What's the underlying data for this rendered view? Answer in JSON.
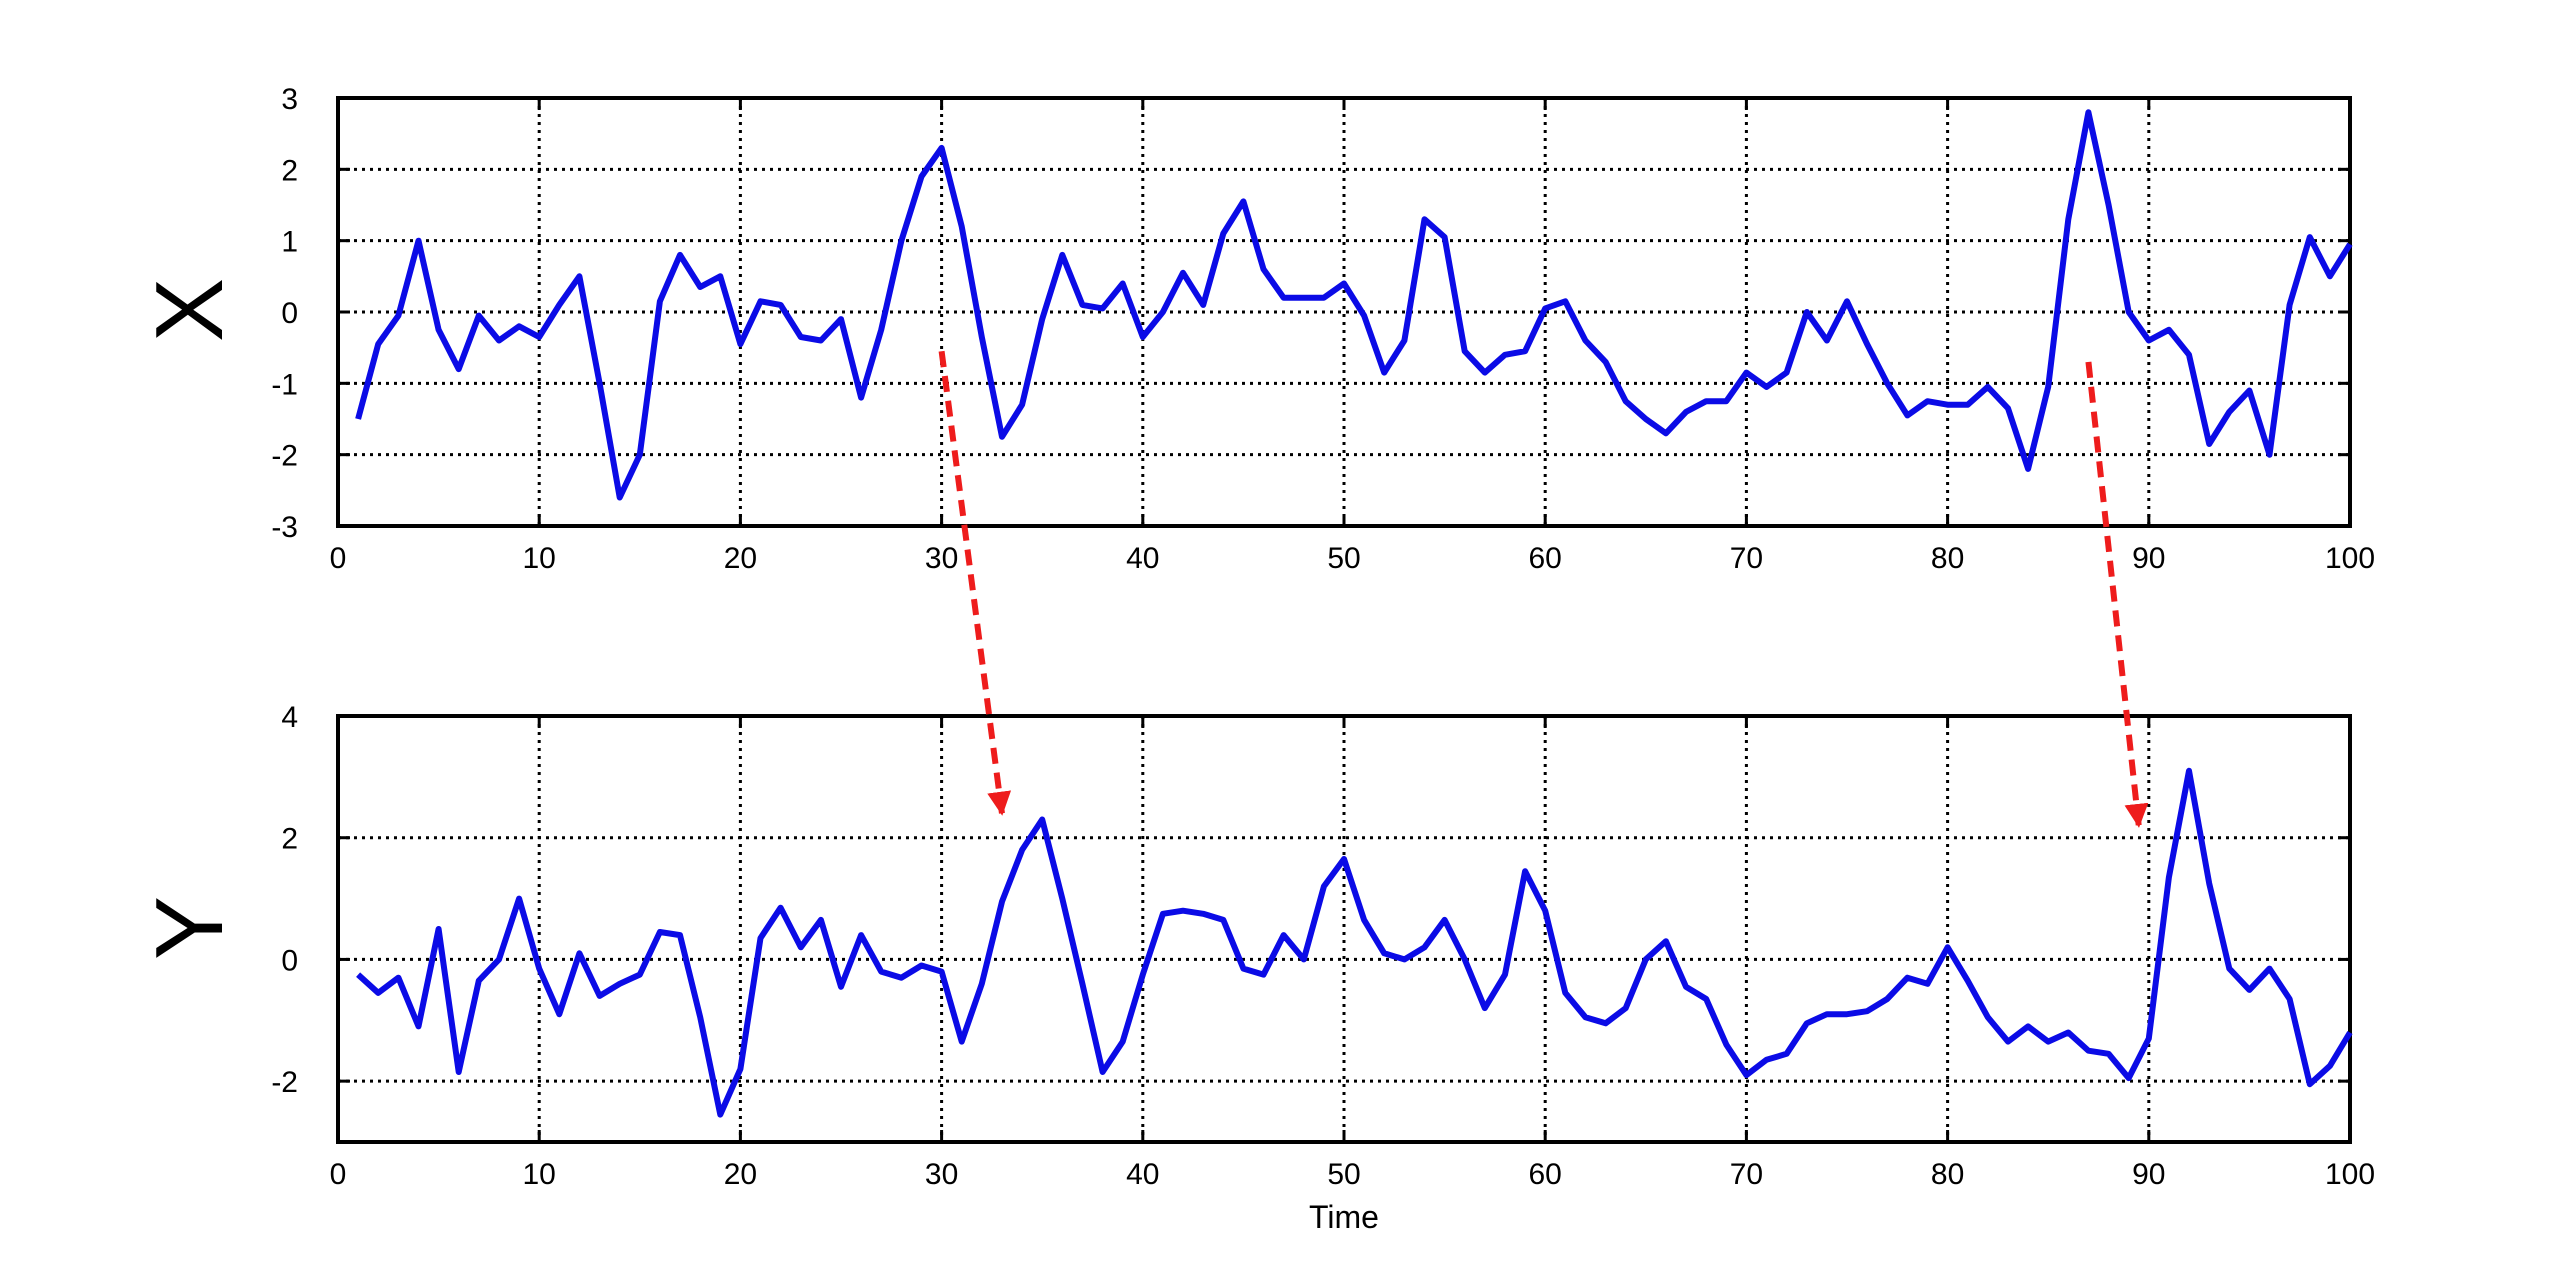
{
  "chart_data": [
    {
      "type": "line",
      "ylabel": "X",
      "xlabel": "",
      "xlim": [
        0,
        100
      ],
      "ylim": [
        -3,
        3
      ],
      "xticks": [
        "0",
        "10",
        "20",
        "30",
        "40",
        "50",
        "60",
        "70",
        "80",
        "90",
        "100"
      ],
      "yticks": [
        "-3",
        "-2",
        "-1",
        "0",
        "1",
        "2",
        "3"
      ],
      "grid": true,
      "series_color": "#0b0be6",
      "series": [
        {
          "x": [
            1,
            2,
            3,
            4,
            5,
            6,
            7,
            8,
            9,
            10,
            11,
            12,
            13,
            14,
            15,
            16,
            17,
            18,
            19,
            20,
            21,
            22,
            23,
            24,
            25,
            26,
            27,
            28,
            29,
            30,
            31,
            32,
            33,
            34,
            35,
            36,
            37,
            38,
            39,
            40,
            41,
            42,
            43,
            44,
            45,
            46,
            47,
            48,
            49,
            50,
            51,
            52,
            53,
            54,
            55,
            56,
            57,
            58,
            59,
            60,
            61,
            62,
            63,
            64,
            65,
            66,
            67,
            68,
            69,
            70,
            71,
            72,
            73,
            74,
            75,
            76,
            77,
            78,
            79,
            80,
            81,
            82,
            83,
            84,
            85,
            86,
            87,
            88,
            89,
            90,
            91,
            92,
            93,
            94,
            95,
            96,
            97,
            98,
            99,
            100
          ],
          "values": [
            -1.5,
            -0.45,
            -0.05,
            1.0,
            -0.25,
            -0.8,
            -0.05,
            -0.4,
            -0.2,
            -0.35,
            0.1,
            0.5,
            -1.0,
            -2.6,
            -2.0,
            0.15,
            0.8,
            0.35,
            0.5,
            -0.45,
            0.15,
            0.1,
            -0.35,
            -0.4,
            -0.1,
            -1.2,
            -0.25,
            1.0,
            1.9,
            2.3,
            1.2,
            -0.35,
            -1.75,
            -1.3,
            -0.1,
            0.8,
            0.1,
            0.05,
            0.4,
            -0.35,
            0.0,
            0.55,
            0.1,
            1.1,
            1.55,
            0.6,
            0.2,
            0.2,
            0.2,
            0.4,
            -0.05,
            -0.85,
            -0.4,
            1.3,
            1.05,
            -0.55,
            -0.85,
            -0.6,
            -0.55,
            0.05,
            0.15,
            -0.4,
            -0.7,
            -1.25,
            -1.5,
            -1.7,
            -1.4,
            -1.25,
            -1.25,
            -0.85,
            -1.05,
            -0.85,
            0.0,
            -0.4,
            0.15,
            -0.45,
            -1.0,
            -1.45,
            -1.25,
            -1.3,
            -1.3,
            -1.05,
            -1.35,
            -2.2,
            -1.05,
            1.3,
            2.8,
            1.5,
            0.0,
            -0.4,
            -0.25,
            -0.6,
            -1.85,
            -1.4,
            -1.1,
            -2.0,
            0.1,
            1.05,
            0.5,
            0.95
          ]
        }
      ]
    },
    {
      "type": "line",
      "ylabel": "Y",
      "xlabel": "Time",
      "xlim": [
        0,
        100
      ],
      "ylim": [
        -3,
        4
      ],
      "xticks": [
        "0",
        "10",
        "20",
        "30",
        "40",
        "50",
        "60",
        "70",
        "80",
        "90",
        "100"
      ],
      "yticks": [
        "-2",
        "0",
        "2",
        "4"
      ],
      "grid": true,
      "series_color": "#0b0be6",
      "series": [
        {
          "x": [
            1,
            2,
            3,
            4,
            5,
            6,
            7,
            8,
            9,
            10,
            11,
            12,
            13,
            14,
            15,
            16,
            17,
            18,
            19,
            20,
            21,
            22,
            23,
            24,
            25,
            26,
            27,
            28,
            29,
            30,
            31,
            32,
            33,
            34,
            35,
            36,
            37,
            38,
            39,
            40,
            41,
            42,
            43,
            44,
            45,
            46,
            47,
            48,
            49,
            50,
            51,
            52,
            53,
            54,
            55,
            56,
            57,
            58,
            59,
            60,
            61,
            62,
            63,
            64,
            65,
            66,
            67,
            68,
            69,
            70,
            71,
            72,
            73,
            74,
            75,
            76,
            77,
            78,
            79,
            80,
            81,
            82,
            83,
            84,
            85,
            86,
            87,
            88,
            89,
            90,
            91,
            92,
            93,
            94,
            95,
            96,
            97,
            98,
            99,
            100
          ],
          "values": [
            -0.25,
            -0.55,
            -0.3,
            -1.1,
            0.5,
            -1.85,
            -0.35,
            0.0,
            1.0,
            -0.15,
            -0.9,
            0.1,
            -0.6,
            -0.4,
            -0.25,
            0.45,
            0.4,
            -0.95,
            -2.55,
            -1.8,
            0.35,
            0.85,
            0.2,
            0.65,
            -0.45,
            0.4,
            -0.2,
            -0.3,
            -0.1,
            -0.2,
            -1.35,
            -0.4,
            0.95,
            1.8,
            2.3,
            1.0,
            -0.4,
            -1.85,
            -1.35,
            -0.25,
            0.75,
            0.8,
            0.75,
            0.65,
            -0.15,
            -0.25,
            0.4,
            0.0,
            1.2,
            1.65,
            0.65,
            0.1,
            0.0,
            0.2,
            0.65,
            0.0,
            -0.8,
            -0.25,
            1.45,
            0.8,
            -0.55,
            -0.95,
            -1.05,
            -0.8,
            0.0,
            0.3,
            -0.45,
            -0.65,
            -1.4,
            -1.9,
            -1.65,
            -1.55,
            -1.05,
            -0.9,
            -0.9,
            -0.85,
            -0.65,
            -0.3,
            -0.4,
            0.2,
            -0.35,
            -0.95,
            -1.35,
            -1.1,
            -1.35,
            -1.2,
            -1.5,
            -1.55,
            -1.95,
            -1.3,
            1.35,
            3.1,
            1.25,
            -0.15,
            -0.5,
            -0.15,
            -0.65,
            -2.05,
            -1.75,
            -1.2
          ]
        }
      ]
    }
  ],
  "annotations": {
    "arrow_color": "#ee1c1c",
    "arrows": [
      {
        "from": {
          "x": 30,
          "y": -0.55,
          "panel": 0
        },
        "to": {
          "x": 33,
          "y": 2.4,
          "panel": 1
        }
      },
      {
        "from": {
          "x": 87,
          "y": -0.7,
          "panel": 0
        },
        "to": {
          "x": 89.5,
          "y": 2.2,
          "panel": 1
        }
      }
    ]
  }
}
